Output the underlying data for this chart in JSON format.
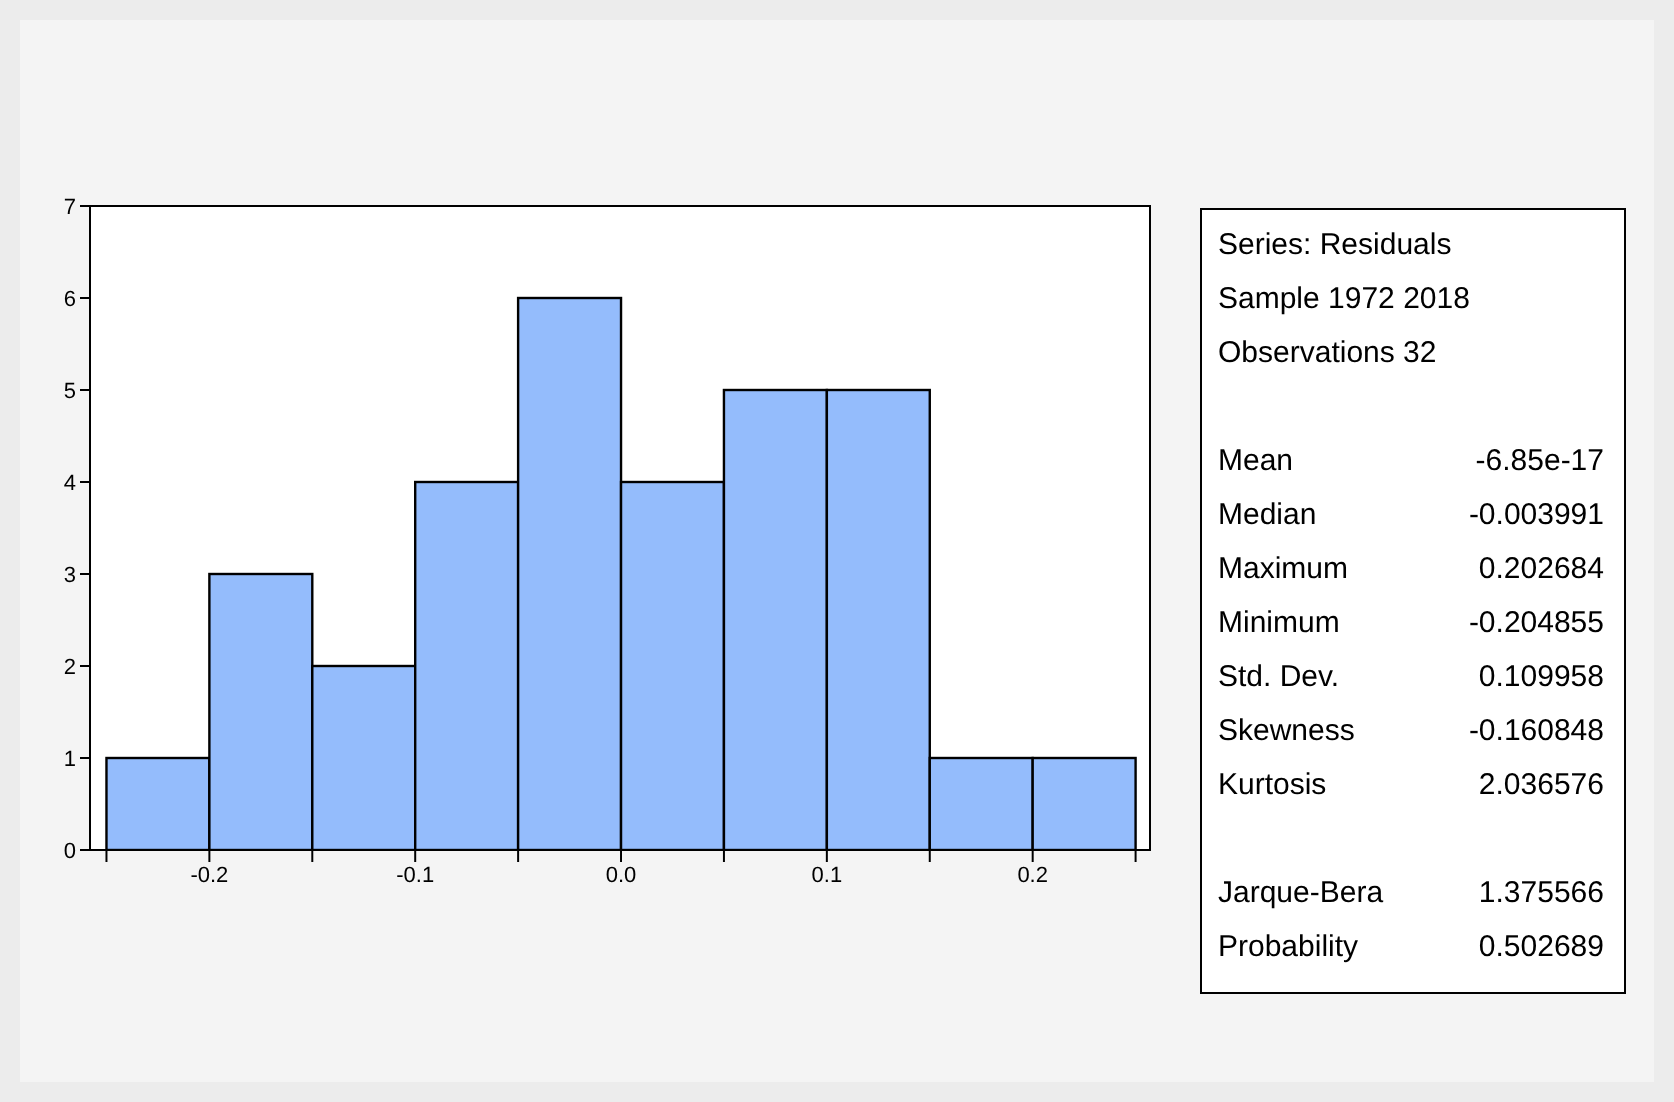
{
  "chart_data": [
    {
      "type": "histogram",
      "bins": [
        -0.25,
        -0.2,
        -0.15,
        -0.1,
        -0.05,
        0,
        0.05,
        0.1,
        0.15,
        0.2,
        0.25
      ],
      "values": [
        1,
        3,
        2,
        4,
        6,
        4,
        5,
        5,
        1,
        1
      ],
      "color": "#94bcfc",
      "xlim": [
        -0.258,
        0.257
      ],
      "xticks": [
        {
          "value": -0.25,
          "label": null
        },
        {
          "value": -0.2,
          "label": "-0.2"
        },
        {
          "value": -0.15,
          "label": null
        },
        {
          "value": -0.1,
          "label": "-0.1"
        },
        {
          "value": -0.05,
          "label": null
        },
        {
          "value": 0,
          "label": "0.0"
        },
        {
          "value": 0.05,
          "label": null
        },
        {
          "value": 0.1,
          "label": "0.1"
        },
        {
          "value": 0.15,
          "label": null
        },
        {
          "value": 0.2,
          "label": "0.2"
        },
        {
          "value": 0.25,
          "label": null
        }
      ],
      "ylim": [
        0,
        7
      ],
      "yticks": [
        0,
        1,
        2,
        3,
        4,
        5,
        6,
        7
      ]
    },
    {
      "type": "other",
      "annotations": [
        "Series: Residuals",
        "Sample 1972 2018",
        "Observations 32",
        "Mean",
        "-6.85e-17",
        "Median",
        "-0.003991",
        "Maximum",
        "0.202684",
        "Minimum",
        "-0.204855",
        "Std. Dev.",
        "0.109958",
        "Skewness",
        "-0.160848",
        "Kurtosis",
        "2.036576",
        "Jarque-Bera",
        "1.375566",
        "Probability",
        "0.502689"
      ]
    }
  ]
}
